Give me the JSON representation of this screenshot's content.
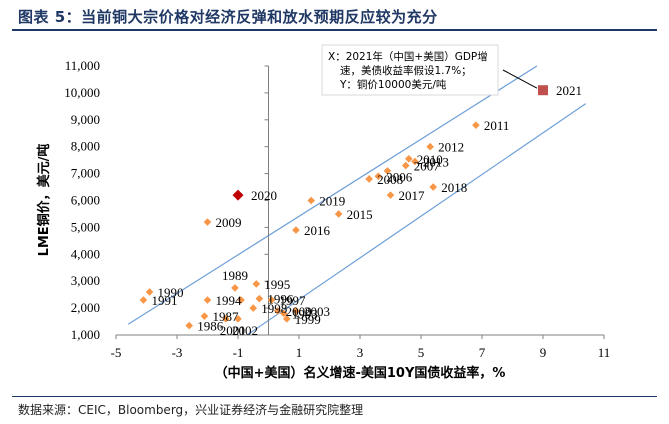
{
  "title": "图表 5：当前铜大宗价格对经济反弹和放水预期反应较为充分",
  "source": "数据来源：CEIC，Bloomberg，兴业证券经济与金融研究院整理",
  "annotation": [
    "X：2021年（中国+美国）GDP增",
    "速，美债收益率假设1.7%；",
    "Y：铜价10000美元/吨"
  ],
  "chart_data": {
    "type": "scatter",
    "title": "图表 5：当前铜大宗价格对经济反弹和放水预期反应较为充分",
    "xlabel": "（中国+美国）名义增速-美国10Y国债收益率，%",
    "ylabel": "LME铜价，美元/吨",
    "xlim": [
      -5,
      11
    ],
    "ylim": [
      1000,
      11000
    ],
    "xticks": [
      -5,
      -3,
      -1,
      1,
      3,
      5,
      7,
      9,
      11
    ],
    "xtick_labels": [
      "-5",
      "-3",
      "-1",
      "1",
      "3",
      "5",
      "7",
      "9",
      "11"
    ],
    "yticks": [
      1000,
      2000,
      3000,
      4000,
      5000,
      6000,
      7000,
      8000,
      9000,
      10000,
      11000
    ],
    "ytick_labels": [
      "1,000",
      "2,000",
      "3,000",
      "4,000",
      "5,000",
      "6,000",
      "7,000",
      "8,000",
      "9,000",
      "10,000",
      "11,000"
    ],
    "colors": {
      "points": "#f79646",
      "highlight_2020": "#c00000",
      "highlight_2021": "#c0504d",
      "bands": "#6f9fd8",
      "axes": "#7f7f7f"
    },
    "points": [
      {
        "x": -3.9,
        "y": 2600,
        "label": "1990",
        "label_pos": "right"
      },
      {
        "x": -4.1,
        "y": 2300,
        "label": "1991",
        "label_pos": "right"
      },
      {
        "x": -2.6,
        "y": 1350,
        "label": "1986",
        "label_pos": "right"
      },
      {
        "x": -2.1,
        "y": 1700,
        "label": "1987",
        "label_pos": "right"
      },
      {
        "x": -2.0,
        "y": 2300,
        "label": "1994",
        "label_pos": "right"
      },
      {
        "x": -1.1,
        "y": 2750,
        "label": "1989",
        "label_pos": "above"
      },
      {
        "x": -0.4,
        "y": 2900,
        "label": "1995",
        "label_pos": "right"
      },
      {
        "x": -0.9,
        "y": 2300,
        "label": "",
        "label_pos": "none"
      },
      {
        "x": -0.5,
        "y": 2000,
        "label": "1998",
        "label_pos": "right"
      },
      {
        "x": -0.3,
        "y": 2350,
        "label": "1996",
        "label_pos": "right"
      },
      {
        "x": 0.1,
        "y": 2300,
        "label": "1997",
        "label_pos": "right"
      },
      {
        "x": 0.3,
        "y": 1900,
        "label": "2000",
        "label_pos": "right"
      },
      {
        "x": 0.5,
        "y": 1800,
        "label": "1993",
        "label_pos": "right"
      },
      {
        "x": 0.6,
        "y": 1600,
        "label": "1999",
        "label_pos": "right"
      },
      {
        "x": 0.9,
        "y": 1900,
        "label": "2003",
        "label_pos": "right"
      },
      {
        "x": -1.4,
        "y": 1600,
        "label": "2001",
        "label_pos": "below"
      },
      {
        "x": -1.0,
        "y": 1600,
        "label": "2002",
        "label_pos": "below"
      },
      {
        "x": -2.0,
        "y": 5200,
        "label": "2009",
        "label_pos": "right"
      },
      {
        "x": 0.9,
        "y": 4900,
        "label": "2016",
        "label_pos": "right"
      },
      {
        "x": 1.4,
        "y": 6000,
        "label": "2019",
        "label_pos": "right"
      },
      {
        "x": 2.3,
        "y": 5500,
        "label": "2015",
        "label_pos": "right"
      },
      {
        "x": 3.3,
        "y": 6800,
        "label": "2008",
        "label_pos": "right"
      },
      {
        "x": 3.6,
        "y": 6900,
        "label": "2006",
        "label_pos": "right"
      },
      {
        "x": 3.9,
        "y": 7100,
        "label": "",
        "label_pos": "none"
      },
      {
        "x": 4.0,
        "y": 6200,
        "label": "2017",
        "label_pos": "right"
      },
      {
        "x": 4.5,
        "y": 7300,
        "label": "2007",
        "label_pos": "right"
      },
      {
        "x": 4.6,
        "y": 7550,
        "label": "2010",
        "label_pos": "right"
      },
      {
        "x": 4.8,
        "y": 7450,
        "label": "2013",
        "label_pos": "right"
      },
      {
        "x": 5.3,
        "y": 8000,
        "label": "2012",
        "label_pos": "right"
      },
      {
        "x": 5.4,
        "y": 6500,
        "label": "2018",
        "label_pos": "right"
      },
      {
        "x": 6.8,
        "y": 8800,
        "label": "2011",
        "label_pos": "right"
      },
      {
        "x": -1.0,
        "y": 6200,
        "label": "2020",
        "label_pos": "right",
        "highlight": "2020"
      },
      {
        "x": 9.0,
        "y": 10100,
        "label": "2021",
        "label_pos": "right",
        "highlight": "2021"
      }
    ],
    "band_lines": [
      {
        "x": [
          -4.6,
          8.8
        ],
        "y": [
          1400,
          11000
        ]
      },
      {
        "x": [
          -0.7,
          10.4
        ],
        "y": [
          1000,
          9600
        ]
      }
    ]
  }
}
